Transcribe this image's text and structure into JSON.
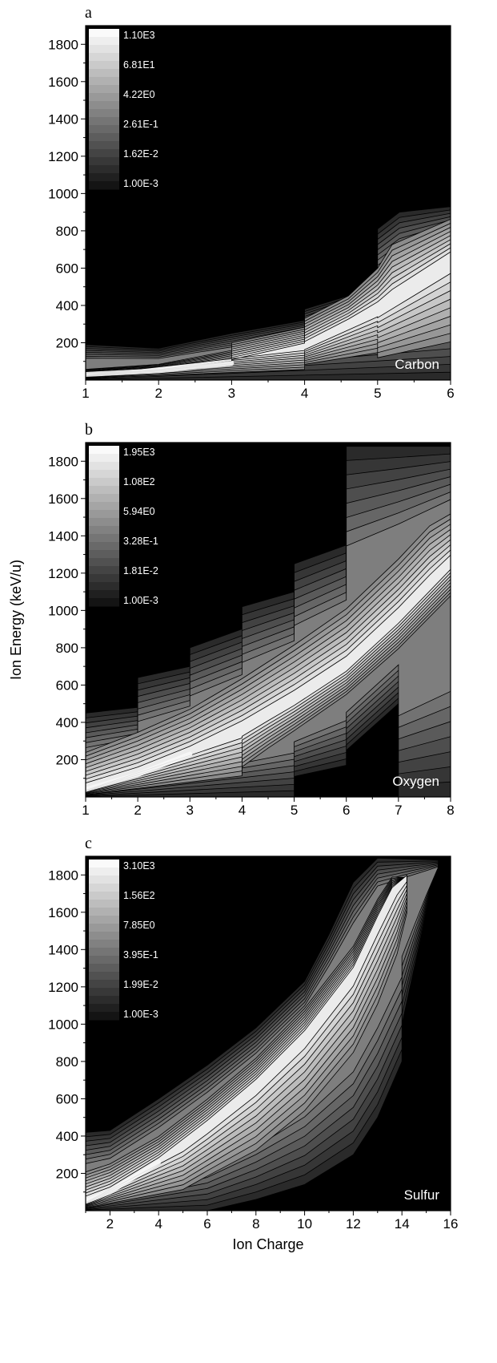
{
  "colors": {
    "background": "#000000",
    "contour_line": "#000000",
    "lightest": "#f7f7f7",
    "axis": "#000000",
    "label_text": "#ffffff"
  },
  "chart_data": [
    {
      "type": "heatmap",
      "subplot_label": "a",
      "annotation": "Carbon",
      "x": [
        1,
        2,
        3,
        4,
        5,
        6
      ],
      "x_ticks": [
        "1",
        "2",
        "3",
        "4",
        "5",
        "6"
      ],
      "xlim": [
        1,
        6
      ],
      "y_ticks": [
        "200",
        "400",
        "600",
        "800",
        "1000",
        "1200",
        "1400",
        "1600",
        "1800"
      ],
      "ylim": [
        0,
        1900
      ],
      "legend": [
        "1.10E3",
        "6.81E1",
        "4.22E0",
        "2.61E-1",
        "1.62E-2",
        "1.00E-3"
      ],
      "legend_placement": "top-left",
      "ridge": [
        [
          1,
          30
        ],
        [
          2,
          50
        ],
        [
          3,
          90
        ],
        [
          4,
          180
        ],
        [
          5,
          380
        ],
        [
          6,
          650
        ]
      ],
      "high_fill": [
        [
          1.0,
          0
        ],
        [
          1.0,
          70
        ],
        [
          2.0,
          100
        ],
        [
          3.0,
          190
        ],
        [
          3.0,
          250
        ],
        [
          4.0,
          330
        ],
        [
          4.0,
          400
        ],
        [
          4.6,
          520
        ],
        [
          5.0,
          700
        ],
        [
          5.2,
          860
        ],
        [
          6.0,
          960
        ],
        [
          6.0,
          0
        ],
        [
          5.0,
          0
        ],
        [
          5.0,
          40
        ],
        [
          4.0,
          40
        ],
        [
          4.0,
          0
        ]
      ],
      "low_fill": [
        [
          1.0,
          0
        ],
        [
          1.0,
          190
        ],
        [
          2.0,
          170
        ],
        [
          3.0,
          250
        ],
        [
          4.0,
          320
        ],
        [
          4.0,
          380
        ],
        [
          5.0,
          500
        ],
        [
          5.0,
          650
        ],
        [
          5.0,
          810
        ],
        [
          5.3,
          900
        ],
        [
          6.0,
          930
        ],
        [
          6.0,
          1200
        ],
        [
          6.0,
          0
        ]
      ]
    },
    {
      "type": "heatmap",
      "subplot_label": "b",
      "annotation": "Oxygen",
      "x": [
        1,
        2,
        3,
        4,
        5,
        6,
        7,
        8
      ],
      "x_ticks": [
        "1",
        "2",
        "3",
        "4",
        "5",
        "6",
        "7",
        "8"
      ],
      "xlim": [
        1,
        8
      ],
      "y_ticks": [
        "200",
        "400",
        "600",
        "800",
        "1000",
        "1200",
        "1400",
        "1600",
        "1800"
      ],
      "ylim": [
        0,
        1900
      ],
      "ylabel": "Ion Energy (keV/u)",
      "legend": [
        "1.95E3",
        "1.08E2",
        "5.94E0",
        "3.28E-1",
        "1.81E-2",
        "1.00E-3"
      ],
      "legend_placement": "top-left",
      "ridge": [
        [
          1,
          40
        ],
        [
          2,
          120
        ],
        [
          3,
          230
        ],
        [
          4,
          360
        ],
        [
          5,
          520
        ],
        [
          6,
          700
        ],
        [
          7,
          960
        ],
        [
          8,
          1250
        ]
      ],
      "low_fill": [
        [
          1.0,
          0
        ],
        [
          1.0,
          450
        ],
        [
          2.0,
          480
        ],
        [
          2.0,
          640
        ],
        [
          3.0,
          700
        ],
        [
          3.0,
          800
        ],
        [
          4.0,
          900
        ],
        [
          4.0,
          1020
        ],
        [
          5.0,
          1100
        ],
        [
          5.0,
          1250
        ],
        [
          6.0,
          1350
        ],
        [
          6.0,
          1880
        ],
        [
          7.0,
          1880
        ],
        [
          8.0,
          1880
        ],
        [
          8.0,
          0
        ],
        [
          7.0,
          0
        ],
        [
          7.0,
          500
        ],
        [
          6.0,
          250
        ],
        [
          6.0,
          170
        ],
        [
          5.0,
          110
        ],
        [
          5.0,
          0
        ]
      ],
      "high_fill": [
        [
          1.0,
          0
        ],
        [
          1.0,
          330
        ],
        [
          2.0,
          450
        ],
        [
          3.0,
          580
        ],
        [
          4.0,
          760
        ],
        [
          5.0,
          950
        ],
        [
          6.0,
          1150
        ],
        [
          7.0,
          1420
        ],
        [
          7.6,
          1600
        ],
        [
          8.0,
          1640
        ],
        [
          8.0,
          1000
        ],
        [
          7.0,
          720
        ],
        [
          6.0,
          480
        ],
        [
          5.0,
          280
        ],
        [
          4.5,
          180
        ],
        [
          4.0,
          70
        ],
        [
          4.0,
          0
        ]
      ]
    },
    {
      "type": "heatmap",
      "subplot_label": "c",
      "annotation": "Sulfur",
      "x": [
        1,
        2,
        4,
        6,
        8,
        10,
        12,
        14,
        16
      ],
      "x_ticks": [
        "2",
        "4",
        "6",
        "8",
        "10",
        "12",
        "14",
        "16"
      ],
      "xlim": [
        1,
        16
      ],
      "xlabel": "Ion Charge",
      "y_ticks": [
        "200",
        "400",
        "600",
        "800",
        "1000",
        "1200",
        "1400",
        "1600",
        "1800"
      ],
      "ylim": [
        0,
        1900
      ],
      "legend": [
        "3.10E3",
        "1.56E2",
        "7.85E0",
        "3.95E-1",
        "1.99E-2",
        "1.00E-3"
      ],
      "legend_placement": "top-left",
      "ridge": [
        [
          1,
          50
        ],
        [
          2,
          100
        ],
        [
          4,
          260
        ],
        [
          6,
          460
        ],
        [
          8,
          680
        ],
        [
          10,
          940
        ],
        [
          12,
          1280
        ],
        [
          13.5,
          1700
        ],
        [
          14,
          1800
        ]
      ],
      "low_fill": [
        [
          1.0,
          0
        ],
        [
          1.0,
          420
        ],
        [
          2.0,
          430
        ],
        [
          4.0,
          600
        ],
        [
          6.0,
          780
        ],
        [
          8.0,
          980
        ],
        [
          10.0,
          1230
        ],
        [
          11.0,
          1480
        ],
        [
          12.0,
          1760
        ],
        [
          13.0,
          1890
        ],
        [
          15.5,
          1880
        ],
        [
          15.0,
          1600
        ],
        [
          14.5,
          1300
        ],
        [
          14.0,
          1000
        ],
        [
          14.0,
          800
        ],
        [
          13.0,
          500
        ],
        [
          12.0,
          300
        ],
        [
          10.0,
          140
        ],
        [
          8.0,
          60
        ],
        [
          6.0,
          0
        ]
      ],
      "high_fill": [
        [
          1.0,
          0
        ],
        [
          1.0,
          280
        ],
        [
          2.0,
          320
        ],
        [
          4.0,
          460
        ],
        [
          6.0,
          660
        ],
        [
          8.0,
          880
        ],
        [
          10.0,
          1150
        ],
        [
          12.0,
          1480
        ],
        [
          13.0,
          1720
        ],
        [
          13.6,
          1820
        ],
        [
          14.2,
          1780
        ],
        [
          14.2,
          1500
        ],
        [
          13.8,
          1200
        ],
        [
          13.0,
          900
        ],
        [
          12.0,
          650
        ],
        [
          10.0,
          350
        ],
        [
          8.0,
          160
        ],
        [
          6.0,
          60
        ],
        [
          5.0,
          0
        ]
      ]
    }
  ]
}
